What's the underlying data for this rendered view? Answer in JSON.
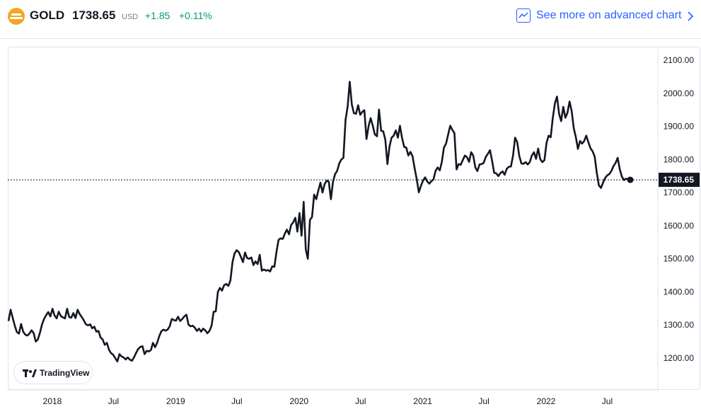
{
  "header": {
    "symbol": "GOLD",
    "price": "1738.65",
    "currency": "USD",
    "change": "+1.85",
    "change_pct": "+0.11%",
    "advanced_link": "See more on advanced chart"
  },
  "branding": {
    "tradingview": "TradingView"
  },
  "colors": {
    "line": "#131722",
    "positive": "#089981",
    "link": "#2962ff",
    "logo": "#f0a826"
  },
  "icons": [
    "gold-logo-icon",
    "chart-trend-icon",
    "chevron-right-icon",
    "tradingview-logo-icon"
  ],
  "chart_data": {
    "type": "line",
    "title": "",
    "xlabel": "",
    "ylabel": "",
    "x_start": "2017-10",
    "x_step": "1 week",
    "y_ticks": [
      "1200.00",
      "1300.00",
      "1400.00",
      "1500.00",
      "1600.00",
      "1700.00",
      "1800.00",
      "1900.00",
      "2000.00",
      "2100.00"
    ],
    "x_ticks": [
      {
        "label": "2018",
        "date": "2018-01-01"
      },
      {
        "label": "Jul",
        "date": "2018-07-01"
      },
      {
        "label": "2019",
        "date": "2019-01-01"
      },
      {
        "label": "Jul",
        "date": "2019-07-01"
      },
      {
        "label": "2020",
        "date": "2020-01-01"
      },
      {
        "label": "Jul",
        "date": "2020-07-01"
      },
      {
        "label": "2021",
        "date": "2021-01-01"
      },
      {
        "label": "Jul",
        "date": "2021-07-01"
      },
      {
        "label": "2022",
        "date": "2022-01-01"
      },
      {
        "label": "Jul",
        "date": "2022-07-01"
      }
    ],
    "ylim": [
      1110,
      2130
    ],
    "last_value_label": "1738.65",
    "last_value": 1738.65,
    "grid": false,
    "values": [
      1312,
      1346,
      1322,
      1298,
      1279,
      1274,
      1303,
      1280,
      1271,
      1268,
      1274,
      1284,
      1276,
      1250,
      1256,
      1276,
      1302,
      1318,
      1330,
      1339,
      1326,
      1349,
      1329,
      1320,
      1340,
      1327,
      1323,
      1320,
      1349,
      1324,
      1322,
      1336,
      1321,
      1346,
      1333,
      1324,
      1314,
      1302,
      1299,
      1302,
      1290,
      1295,
      1280,
      1282,
      1262,
      1256,
      1240,
      1246,
      1225,
      1215,
      1210,
      1200,
      1190,
      1212,
      1205,
      1202,
      1196,
      1202,
      1195,
      1192,
      1203,
      1216,
      1228,
      1234,
      1236,
      1212,
      1222,
      1220,
      1224,
      1246,
      1233,
      1246,
      1266,
      1281,
      1286,
      1283,
      1286,
      1296,
      1318,
      1315,
      1313,
      1325,
      1312,
      1318,
      1326,
      1331,
      1301,
      1296,
      1298,
      1292,
      1282,
      1289,
      1280,
      1289,
      1284,
      1275,
      1282,
      1298,
      1340,
      1341,
      1400,
      1412,
      1404,
      1420,
      1424,
      1418,
      1434,
      1490,
      1516,
      1526,
      1520,
      1506,
      1490,
      1519,
      1502,
      1500,
      1504,
      1481,
      1492,
      1484,
      1512,
      1464,
      1468,
      1464,
      1466,
      1462,
      1477,
      1476,
      1520,
      1557,
      1562,
      1560,
      1576,
      1588,
      1574,
      1602,
      1610,
      1624,
      1582,
      1638,
      1570,
      1672,
      1528,
      1500,
      1618,
      1626,
      1694,
      1680,
      1706,
      1730,
      1700,
      1726,
      1736,
      1733,
      1680,
      1732,
      1756,
      1766,
      1788,
      1800,
      1805,
      1920,
      1960,
      2035,
      1966,
      1940,
      1938,
      1964,
      1935,
      1944,
      1949,
      1862,
      1901,
      1925,
      1902,
      1876,
      1870,
      1951,
      1887,
      1885,
      1860,
      1786,
      1839,
      1866,
      1872,
      1888,
      1866,
      1902,
      1865,
      1838,
      1836,
      1812,
      1823,
      1810,
      1773,
      1741,
      1701,
      1720,
      1736,
      1746,
      1734,
      1727,
      1734,
      1740,
      1766,
      1776,
      1767,
      1792,
      1836,
      1848,
      1875,
      1902,
      1890,
      1880,
      1770,
      1786,
      1784,
      1798,
      1812,
      1807,
      1793,
      1822,
      1812,
      1776,
      1765,
      1785,
      1786,
      1790,
      1808,
      1817,
      1828,
      1796,
      1760,
      1758,
      1750,
      1759,
      1764,
      1754,
      1772,
      1778,
      1779,
      1812,
      1866,
      1852,
      1811,
      1788,
      1787,
      1792,
      1785,
      1792,
      1812,
      1822,
      1802,
      1833,
      1801,
      1792,
      1798,
      1850,
      1872,
      1867,
      1926,
      1970,
      1990,
      1938,
      1916,
      1959,
      1926,
      1941,
      1975,
      1947,
      1895,
      1867,
      1832,
      1856,
      1848,
      1856,
      1872,
      1852,
      1834,
      1825,
      1809,
      1761,
      1722,
      1714,
      1730,
      1744,
      1752,
      1756,
      1766,
      1780,
      1790,
      1805,
      1770,
      1748,
      1738,
      1742,
      1740,
      1738.65
    ]
  }
}
